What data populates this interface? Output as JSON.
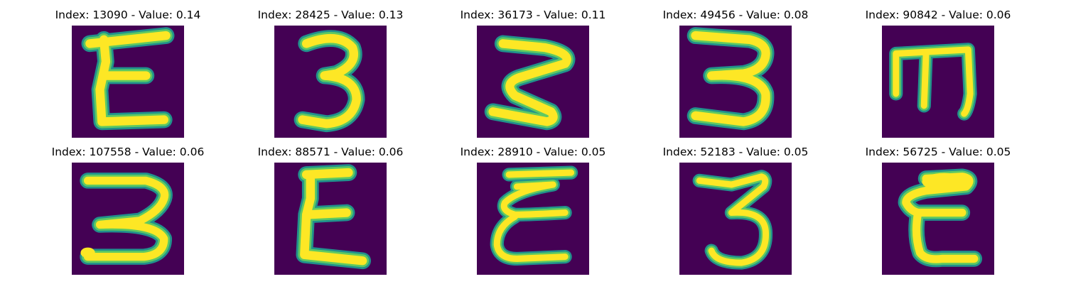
{
  "colors": {
    "background": "#440154",
    "stroke_edge": "#21918c",
    "stroke_mid": "#5ec962",
    "stroke_core": "#fde725"
  },
  "grid": {
    "rows": 2,
    "columns": 5,
    "items": [
      {
        "title": "Index: 13090 - Value: 0.14",
        "index": 13090,
        "value": 0.14,
        "glyph": "E"
      },
      {
        "title": "Index: 28425 - Value: 0.13",
        "index": 28425,
        "value": 0.13,
        "glyph": "3"
      },
      {
        "title": "Index: 36173 - Value: 0.11",
        "index": 36173,
        "value": 0.11,
        "glyph": "3"
      },
      {
        "title": "Index: 49456 - Value: 0.08",
        "index": 49456,
        "value": 0.08,
        "glyph": "3"
      },
      {
        "title": "Index: 90842 - Value: 0.06",
        "index": 90842,
        "value": 0.06,
        "glyph": "E"
      },
      {
        "title": "Index: 107558 - Value: 0.06",
        "index": 107558,
        "value": 0.06,
        "glyph": "3"
      },
      {
        "title": "Index: 88571 - Value: 0.06",
        "index": 88571,
        "value": 0.06,
        "glyph": "E"
      },
      {
        "title": "Index: 28910 - Value: 0.05",
        "index": 28910,
        "value": 0.05,
        "glyph": "E"
      },
      {
        "title": "Index: 52183 - Value: 0.05",
        "index": 52183,
        "value": 0.05,
        "glyph": "3"
      },
      {
        "title": "Index: 56725 - Value: 0.05",
        "index": 56725,
        "value": 0.05,
        "glyph": "E"
      }
    ]
  }
}
